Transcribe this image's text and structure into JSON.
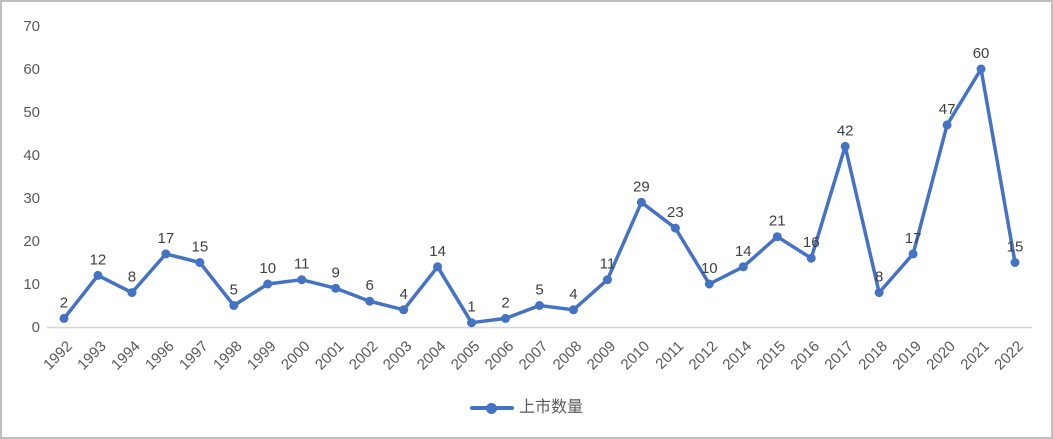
{
  "chart_data": {
    "type": "line",
    "categories": [
      "1992",
      "1993",
      "1994",
      "1996",
      "1997",
      "1998",
      "1999",
      "2000",
      "2001",
      "2002",
      "2003",
      "2004",
      "2005",
      "2006",
      "2007",
      "2008",
      "2009",
      "2010",
      "2011",
      "2012",
      "2014",
      "2015",
      "2016",
      "2017",
      "2018",
      "2019",
      "2020",
      "2021",
      "2022"
    ],
    "series": [
      {
        "name": "上市数量",
        "values": [
          2,
          12,
          8,
          17,
          15,
          5,
          10,
          11,
          9,
          6,
          4,
          14,
          1,
          2,
          5,
          4,
          11,
          29,
          23,
          10,
          14,
          21,
          16,
          42,
          8,
          17,
          47,
          60,
          15
        ]
      }
    ],
    "title": "",
    "xlabel": "",
    "ylabel": "",
    "ylim": [
      0,
      70
    ],
    "y_ticks": [
      0,
      10,
      20,
      30,
      40,
      50,
      60,
      70
    ],
    "grid": false,
    "data_labels": true,
    "legend_position": "bottom",
    "legend_label": "上市数量",
    "colors": {
      "line": "#4472C4",
      "marker": "#4472C4",
      "data_label": "#404040",
      "axis_label": "#595959",
      "axis_line": "#D6D6D6",
      "border": "#BFBFBF",
      "background": "#FFFFFF"
    }
  }
}
